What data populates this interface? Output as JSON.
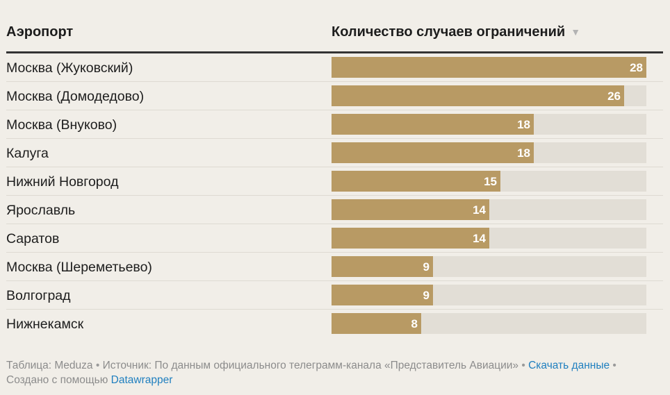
{
  "header": {
    "col_airport": "Аэропорт",
    "col_count": "Количество случаев ограничений",
    "sort_icon": "▼"
  },
  "chart_data": {
    "type": "bar",
    "orientation": "horizontal",
    "categories": [
      "Москва (Жуковский)",
      "Москва (Домодедово)",
      "Москва (Внуково)",
      "Калуга",
      "Нижний Новгород",
      "Ярославль",
      "Саратов",
      "Москва (Шереметьево)",
      "Волгоград",
      "Нижнекамск"
    ],
    "values": [
      28,
      26,
      18,
      18,
      15,
      14,
      14,
      9,
      9,
      8
    ],
    "xlim": [
      0,
      28
    ],
    "bar_color": "#b89a64",
    "track_color": "#e2ded6"
  },
  "footer": {
    "table_label": "Таблица: Meduza",
    "bullet": "•",
    "source_label": "Источник: По данным официального телеграмм-канала «Представитель Авиации»",
    "download_link": "Скачать данные",
    "created_label": "Создано с помощью",
    "tool_link": "Datawrapper"
  }
}
